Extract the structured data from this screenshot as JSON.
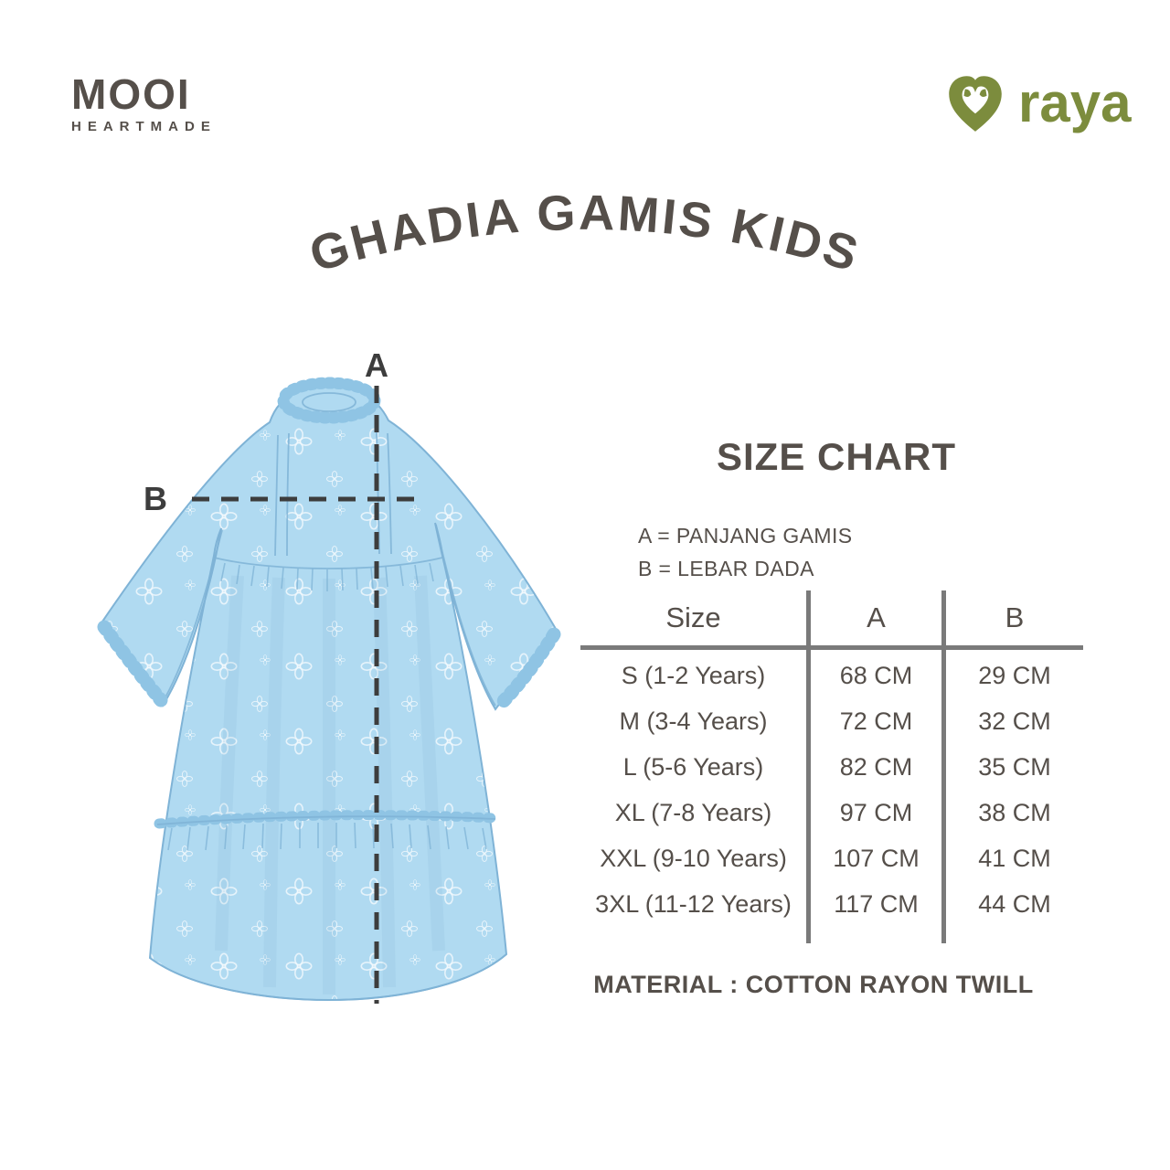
{
  "brand": {
    "name": "MOOI",
    "tagline": "HEARTMADE"
  },
  "partner": {
    "name": "raya",
    "icon": "heart-swirl-icon"
  },
  "title": "GHADIA GAMIS KIDS",
  "diagram": {
    "label_a": "A",
    "label_b": "B"
  },
  "size_chart": {
    "heading": "SIZE CHART",
    "legend": [
      "A = PANJANG GAMIS",
      "B = LEBAR DADA"
    ],
    "columns": [
      "Size",
      "A",
      "B"
    ],
    "rows": [
      {
        "size": "S (1-2 Years)",
        "a": "68 CM",
        "b": "29 CM"
      },
      {
        "size": "M (3-4 Years)",
        "a": "72 CM",
        "b": "32 CM"
      },
      {
        "size": "L (5-6 Years)",
        "a": "82 CM",
        "b": "35 CM"
      },
      {
        "size": "XL (7-8 Years)",
        "a": "97 CM",
        "b": "38 CM"
      },
      {
        "size": "XXL (9-10 Years)",
        "a": "107 CM",
        "b": "41 CM"
      },
      {
        "size": "3XL (11-12 Years)",
        "a": "117 CM",
        "b": "44 CM"
      }
    ],
    "material": "MATERIAL : COTTON RAYON TWILL"
  },
  "colors": {
    "ink": "#554f4a",
    "line": "#7a7a7a",
    "dash": "#3d3d3d",
    "green": "#7c8c3d",
    "blue": "#b0daf1",
    "blue-line": "#7fb3d6",
    "blue-mid": "#8fc4e4",
    "blue-shadow": "#5f9fc4"
  }
}
